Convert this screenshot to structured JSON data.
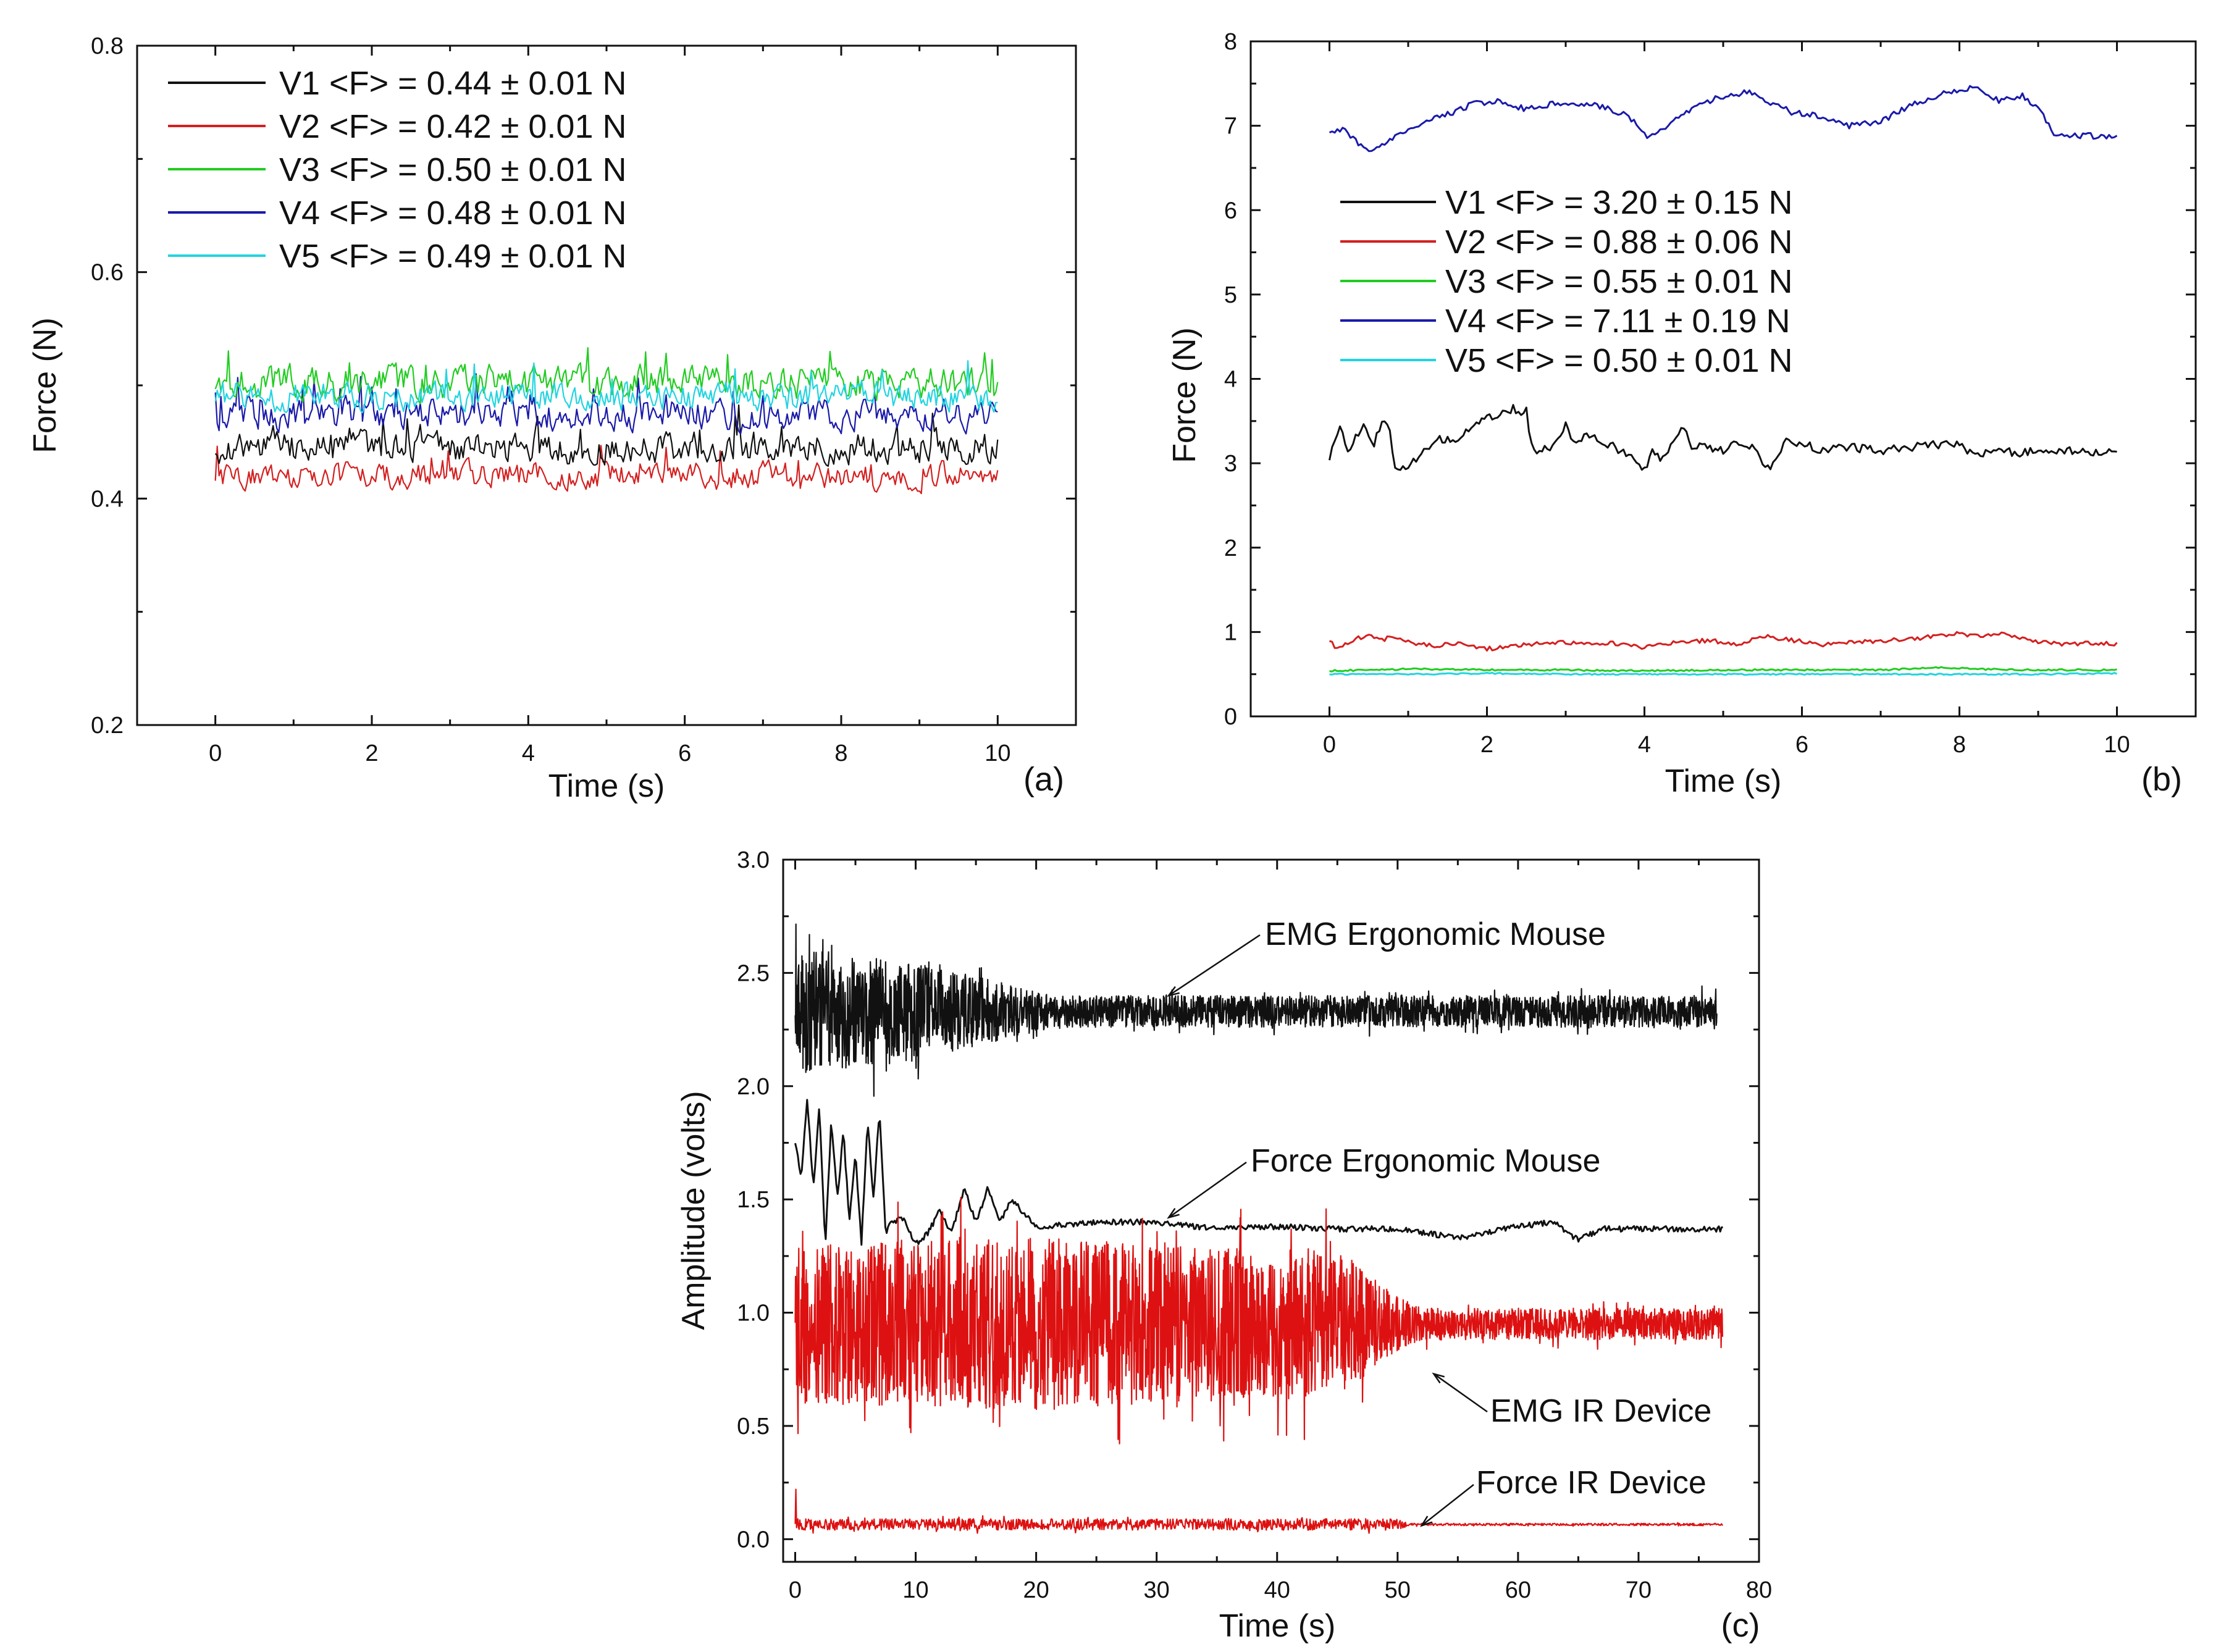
{
  "chart_data": [
    {
      "panel": "(a)",
      "type": "line",
      "xlabel": "Time (s)",
      "ylabel": "Force (N)",
      "xlim": [
        -1,
        11
      ],
      "ylim": [
        0.2,
        0.8
      ],
      "xticks": [
        0,
        2,
        4,
        6,
        8,
        10
      ],
      "yticks": [
        0.2,
        0.4,
        0.6,
        0.8
      ],
      "y_decimals": 1,
      "legend_position": "top-left",
      "series": [
        {
          "name": "V1 <F> = 0.44 ± 0.01 N",
          "color": "#111111",
          "x": [
            0,
            10
          ],
          "mean": 0.445,
          "noise": 0.013
        },
        {
          "name": "V2 <F> = 0.42 ± 0.01 N",
          "color": "#d42020",
          "x": [
            0,
            10
          ],
          "mean": 0.42,
          "noise": 0.011
        },
        {
          "name": "V3 <F> = 0.50 ± 0.01 N",
          "color": "#22cc22",
          "x": [
            0,
            10
          ],
          "mean": 0.502,
          "noise": 0.014
        },
        {
          "name": "V4 <F> = 0.48 ± 0.01 N",
          "color": "#1a1aaa",
          "x": [
            0,
            10
          ],
          "mean": 0.475,
          "noise": 0.013
        },
        {
          "name": "V5 <F> = 0.49 ± 0.01 N",
          "color": "#22d4e0",
          "x": [
            0,
            10
          ],
          "mean": 0.49,
          "noise": 0.012
        }
      ]
    },
    {
      "panel": "(b)",
      "type": "line",
      "xlabel": "Time (s)",
      "ylabel": "Force (N)",
      "xlim": [
        -1,
        11
      ],
      "ylim": [
        0,
        8
      ],
      "xticks": [
        0,
        2,
        4,
        6,
        8,
        10
      ],
      "yticks": [
        0,
        1,
        2,
        3,
        4,
        5,
        6,
        7,
        8
      ],
      "y_decimals": 0,
      "legend_position": "middle-left",
      "series": [
        {
          "name": "V4 <F> = 7.11 ± 0.19 N",
          "color": "#1a1aaa",
          "x": [
            0,
            0.2,
            0.35,
            0.55,
            0.8,
            1.1,
            1.4,
            1.8,
            2.1,
            2.5,
            2.8,
            3.1,
            3.5,
            3.8,
            4.05,
            4.3,
            4.7,
            5.0,
            5.3,
            5.6,
            5.9,
            6.2,
            6.6,
            7.0,
            7.4,
            7.8,
            8.2,
            8.5,
            8.8,
            9.05,
            9.2,
            10
          ],
          "y": [
            6.93,
            6.95,
            6.8,
            6.68,
            6.85,
            7.0,
            7.1,
            7.25,
            7.3,
            7.2,
            7.25,
            7.28,
            7.22,
            7.12,
            6.85,
            7.0,
            7.25,
            7.35,
            7.4,
            7.28,
            7.15,
            7.12,
            7.0,
            7.05,
            7.25,
            7.38,
            7.45,
            7.3,
            7.35,
            7.15,
            6.88,
            6.88
          ]
        },
        {
          "name": "V1 <F> = 3.20 ± 0.15 N",
          "color": "#111111",
          "x": [
            0,
            0.08,
            0.15,
            0.25,
            0.35,
            0.45,
            0.55,
            0.65,
            0.75,
            0.82,
            0.9,
            1.05,
            1.2,
            1.4,
            1.6,
            1.8,
            2.0,
            2.2,
            2.35,
            2.45,
            2.5,
            2.55,
            2.65,
            2.8,
            3.0,
            3.1,
            3.3,
            3.5,
            3.7,
            3.9,
            4.0,
            4.1,
            4.2,
            4.35,
            4.5,
            4.6,
            4.8,
            5.0,
            5.2,
            5.4,
            5.5,
            5.6,
            5.8,
            6.0,
            6.2,
            6.5,
            7.0,
            7.5,
            8.0,
            8.1,
            8.2,
            8.3,
            8.5,
            8.7,
            9.0,
            9.5,
            10
          ],
          "y": [
            3.05,
            3.35,
            3.4,
            3.1,
            3.35,
            3.45,
            3.2,
            3.45,
            3.5,
            2.95,
            2.9,
            3.0,
            3.15,
            3.3,
            3.25,
            3.45,
            3.55,
            3.6,
            3.65,
            3.55,
            3.7,
            3.2,
            3.15,
            3.2,
            3.45,
            3.25,
            3.35,
            3.25,
            3.15,
            3.05,
            2.9,
            3.2,
            3.05,
            3.2,
            3.45,
            3.2,
            3.2,
            3.15,
            3.25,
            3.2,
            3.0,
            2.95,
            3.25,
            3.25,
            3.15,
            3.2,
            3.15,
            3.2,
            3.25,
            3.15,
            3.1,
            3.1,
            3.2,
            3.1,
            3.15,
            3.15,
            3.12
          ]
        },
        {
          "name": "V2 <F> = 0.88 ± 0.06 N",
          "color": "#d42020",
          "x": [
            0,
            0.1,
            0.2,
            0.35,
            0.5,
            0.65,
            0.8,
            1.0,
            1.3,
            1.7,
            2.0,
            2.4,
            2.8,
            3.2,
            3.6,
            4.0,
            4.4,
            4.8,
            5.2,
            5.5,
            5.9,
            6.3,
            6.7,
            7.1,
            7.5,
            7.9,
            8.3,
            8.6,
            8.9,
            9.3,
            9.7,
            10
          ],
          "y": [
            0.9,
            0.8,
            0.85,
            0.92,
            0.97,
            0.9,
            0.95,
            0.88,
            0.84,
            0.86,
            0.8,
            0.84,
            0.88,
            0.86,
            0.87,
            0.82,
            0.88,
            0.9,
            0.86,
            0.95,
            0.9,
            0.85,
            0.88,
            0.9,
            0.93,
            0.98,
            0.96,
            0.98,
            0.9,
            0.85,
            0.87,
            0.86
          ]
        },
        {
          "name": "V3 <F> = 0.55 ± 0.01 N",
          "color": "#22cc22",
          "x": [
            0,
            1,
            2,
            3,
            4,
            5,
            6,
            7,
            7.8,
            8.2,
            9,
            10
          ],
          "y": [
            0.54,
            0.56,
            0.55,
            0.55,
            0.54,
            0.55,
            0.55,
            0.55,
            0.58,
            0.56,
            0.55,
            0.55
          ]
        },
        {
          "name": "V5 <F> = 0.50 ± 0.01 N",
          "color": "#22d4e0",
          "x": [
            0,
            1,
            2,
            3,
            4,
            5,
            6,
            7,
            8,
            9,
            10
          ],
          "y": [
            0.5,
            0.5,
            0.51,
            0.5,
            0.5,
            0.5,
            0.5,
            0.5,
            0.5,
            0.5,
            0.51
          ]
        }
      ]
    },
    {
      "panel": "(c)",
      "type": "line",
      "xlabel": "Time (s)",
      "ylabel": "Amplitude (volts)",
      "xlim": [
        -1,
        80
      ],
      "ylim": [
        -0.1,
        3.0
      ],
      "xticks": [
        0,
        10,
        20,
        30,
        40,
        50,
        60,
        70,
        80
      ],
      "yticks": [
        0.0,
        0.5,
        1.0,
        1.5,
        2.0,
        2.5,
        3.0
      ],
      "y_decimals": 1,
      "series": [
        {
          "name": "EMG Ergonomic Mouse",
          "color": "#111111",
          "x_range": [
            0,
            76.5
          ],
          "mean": 2.33,
          "amplitude_profile": {
            "x": [
              0,
              10,
              20,
              22,
              76.5
            ],
            "amp": [
              0.28,
              0.22,
              0.09,
              0.07,
              0.07
            ]
          }
        },
        {
          "name": "Force Ergonomic Mouse",
          "color": "#111111",
          "x": [
            0,
            0.5,
            1,
            1.5,
            2,
            2.5,
            3,
            3.5,
            4,
            4.5,
            5,
            5.5,
            6,
            6.5,
            7,
            7.5,
            8,
            9,
            10,
            11,
            12,
            13,
            14,
            15,
            16,
            17,
            18,
            20,
            25,
            30,
            35,
            40,
            45,
            50,
            55,
            60,
            63,
            65,
            67,
            70,
            75,
            77
          ],
          "y": [
            1.75,
            1.6,
            1.95,
            1.55,
            1.9,
            1.3,
            1.85,
            1.5,
            1.8,
            1.4,
            1.7,
            1.3,
            1.85,
            1.5,
            1.9,
            1.35,
            1.4,
            1.42,
            1.3,
            1.35,
            1.45,
            1.35,
            1.55,
            1.4,
            1.55,
            1.4,
            1.5,
            1.38,
            1.4,
            1.4,
            1.37,
            1.38,
            1.37,
            1.37,
            1.33,
            1.38,
            1.4,
            1.32,
            1.37,
            1.37,
            1.37,
            1.37
          ]
        },
        {
          "name": "EMG IR Device",
          "color": "#dd1111",
          "x_range": [
            0,
            77
          ],
          "mean": 0.95,
          "amplitude_profile": {
            "x": [
              0,
              20,
              45,
              50,
              52,
              77
            ],
            "amp": [
              0.35,
              0.38,
              0.32,
              0.12,
              0.07,
              0.07
            ]
          }
        },
        {
          "name": "Force IR Device",
          "color": "#dd1111",
          "x_range": [
            0,
            77
          ],
          "mean": 0.065,
          "spike": {
            "x": 0.2,
            "y": 0.22
          },
          "amplitude_profile": {
            "x": [
              0,
              50,
              51,
              77
            ],
            "amp": [
              0.025,
              0.025,
              0.005,
              0.005
            ]
          }
        }
      ],
      "annotations": [
        {
          "text": "EMG Ergonomic Mouse",
          "points_to": [
            31,
            2.4
          ]
        },
        {
          "text": "Force Ergonomic Mouse",
          "points_to": [
            31,
            1.42
          ]
        },
        {
          "text": "EMG IR Device",
          "points_to": [
            53,
            0.73
          ]
        },
        {
          "text": "Force IR Device",
          "points_to": [
            52,
            0.06
          ]
        }
      ]
    }
  ]
}
